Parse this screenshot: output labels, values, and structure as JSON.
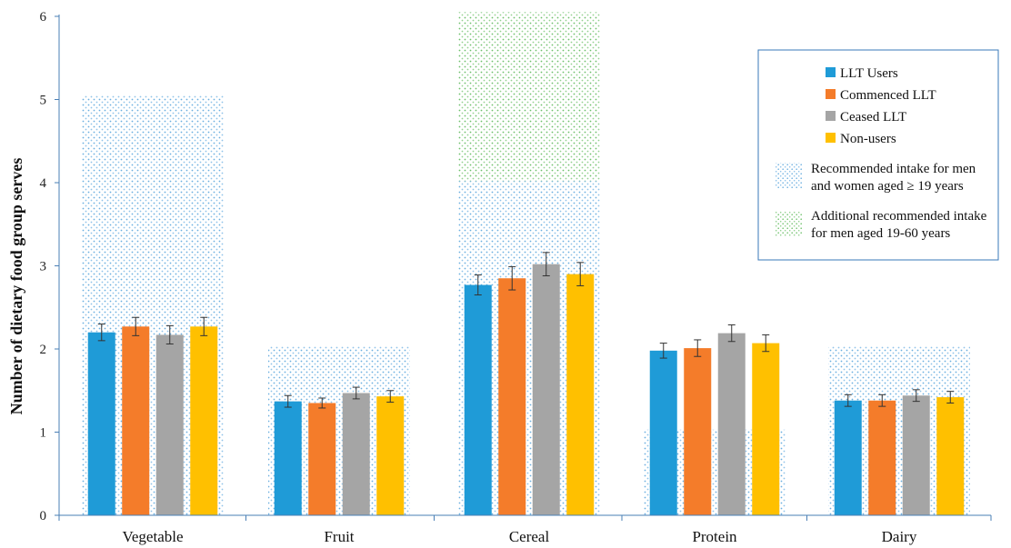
{
  "chart_data": {
    "type": "bar",
    "categories": [
      "Vegetable",
      "Fruit",
      "Cereal",
      "Protein",
      "Dairy"
    ],
    "ylabel": "Number of dietary food group serves",
    "xlabel": "",
    "title": "",
    "ylim": [
      0,
      6
    ],
    "yticks": [
      "0",
      "1",
      "2",
      "3",
      "4",
      "5",
      "6"
    ],
    "grid": false,
    "legend_position": "top-right",
    "series": [
      {
        "name": "LLT Users",
        "color": "#1f9bd7",
        "values": [
          2.2,
          1.37,
          2.77,
          1.98,
          1.38
        ],
        "errors": [
          0.1,
          0.07,
          0.12,
          0.09,
          0.07
        ]
      },
      {
        "name": "Commenced LLT",
        "color": "#f47c2a",
        "values": [
          2.27,
          1.35,
          2.85,
          2.01,
          1.38
        ],
        "errors": [
          0.11,
          0.06,
          0.14,
          0.1,
          0.07
        ]
      },
      {
        "name": "Ceased LLT",
        "color": "#a5a5a5",
        "values": [
          2.17,
          1.47,
          3.02,
          2.19,
          1.44
        ],
        "errors": [
          0.11,
          0.07,
          0.14,
          0.1,
          0.07
        ]
      },
      {
        "name": "Non-users",
        "color": "#ffc000",
        "values": [
          2.27,
          1.43,
          2.9,
          2.07,
          1.42
        ],
        "errors": [
          0.11,
          0.07,
          0.14,
          0.1,
          0.07
        ]
      }
    ],
    "recommended_intake": {
      "label_line1": "Recommended intake for men",
      "label_line2": "and women aged ≥ 19 years",
      "color": "#9ec9e8",
      "values": [
        5.05,
        2.03,
        4.02,
        1.03,
        2.03
      ]
    },
    "additional_intake": {
      "label_line1": "Additional recommended intake",
      "label_line2": "for men aged 19-60 years",
      "color": "#8fce8a",
      "ranges": [
        [
          4.02,
          6.05
        ]
      ],
      "category": "Cereal"
    }
  }
}
